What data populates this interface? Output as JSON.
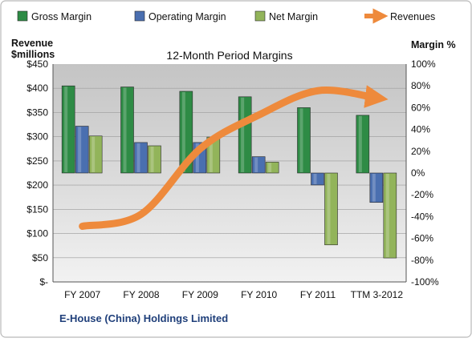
{
  "chart_data": {
    "type": "bar",
    "title": "12-Month Period Margins",
    "left_axis_label_line1": "Revenue",
    "left_axis_label_line2": "$millions",
    "right_axis_label": "Margin %",
    "footer": "E-House (China) Holdings Limited",
    "categories": [
      "FY 2007",
      "FY 2008",
      "FY 2009",
      "FY 2010",
      "FY 2011",
      "TTM 3-2012"
    ],
    "left_axis": {
      "min": 0,
      "max": 450,
      "step": 50,
      "tick_labels": [
        "$-",
        "$50",
        "$100",
        "$150",
        "$200",
        "$250",
        "$300",
        "$350",
        "$400",
        "$450"
      ]
    },
    "right_axis": {
      "min": -100,
      "max": 100,
      "step": 20,
      "tick_labels": [
        "-100%",
        "-80%",
        "-60%",
        "-40%",
        "-20%",
        "0%",
        "20%",
        "40%",
        "60%",
        "80%",
        "100%"
      ]
    },
    "series": [
      {
        "name": "Gross Margin",
        "axis": "right",
        "kind": "bar",
        "values": [
          80,
          79,
          75,
          70,
          60,
          53
        ]
      },
      {
        "name": "Operating Margin",
        "axis": "right",
        "kind": "bar",
        "values": [
          43,
          28,
          28,
          15,
          -11,
          -27
        ]
      },
      {
        "name": "Net Margin",
        "axis": "right",
        "kind": "bar",
        "values": [
          34,
          25,
          33,
          10,
          -66,
          -78
        ]
      },
      {
        "name": "Revenues",
        "axis": "left",
        "kind": "arrow-line",
        "values": [
          115,
          140,
          275,
          345,
          395,
          380
        ]
      }
    ],
    "colors": {
      "Gross Margin": "#2e8b45",
      "Operating Margin": "#4a6fb0",
      "Net Margin": "#92b45a",
      "Revenues": "#ee8a3c",
      "plot_top": "#c9c9c9",
      "plot_bottom": "#ededed"
    },
    "grid": true,
    "legend_position": "top"
  }
}
